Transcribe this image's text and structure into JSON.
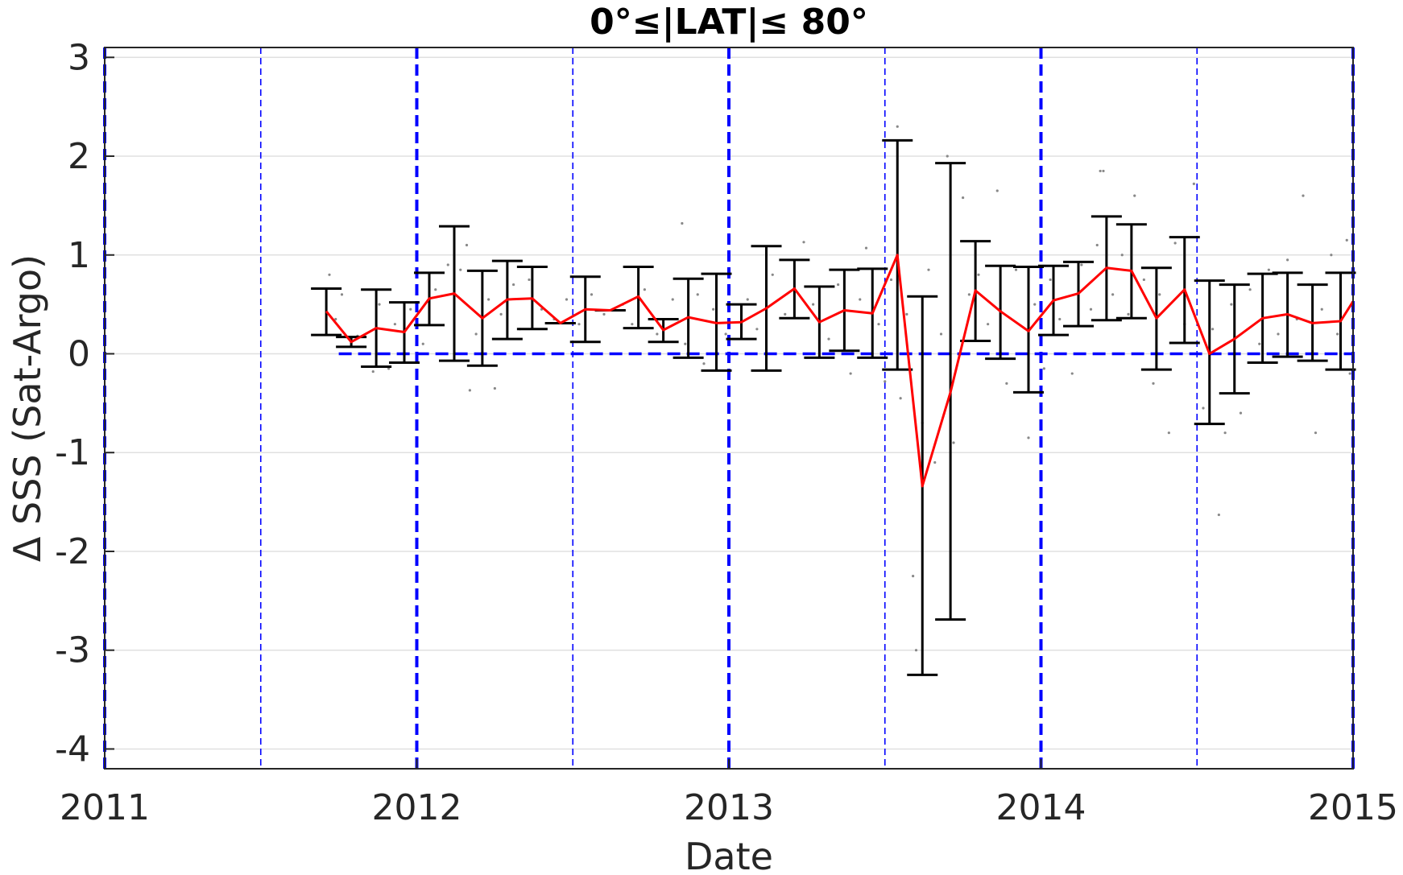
{
  "chart_data": {
    "type": "line",
    "title": "0°≤|LAT|≤ 80°",
    "xlabel": "Date",
    "ylabel": "Δ SSS (Sat-Argo)",
    "xlim": [
      2011.0,
      2015.0
    ],
    "ylim": [
      -4.2,
      3.1
    ],
    "x_ticks": [
      {
        "value": 2011,
        "label": "2011"
      },
      {
        "value": 2012,
        "label": "2012"
      },
      {
        "value": 2013,
        "label": "2013"
      },
      {
        "value": 2014,
        "label": "2014"
      },
      {
        "value": 2015,
        "label": "2015"
      }
    ],
    "y_ticks": [
      {
        "value": 3,
        "label": "3"
      },
      {
        "value": 2,
        "label": "2"
      },
      {
        "value": 1,
        "label": "1"
      },
      {
        "value": 0,
        "label": "0"
      },
      {
        "value": -1,
        "label": "-1"
      },
      {
        "value": -2,
        "label": "-2"
      },
      {
        "value": -3,
        "label": "-3"
      },
      {
        "value": -4,
        "label": "-4"
      }
    ],
    "grid": true,
    "zero_line": {
      "y": 0,
      "x_start": 2011.75,
      "x_end": 2015.0,
      "color": "#0000ff",
      "style": "dashed"
    },
    "vertical_markers": [
      {
        "x": 2011.0,
        "style": "thick"
      },
      {
        "x": 2011.5,
        "style": "thin"
      },
      {
        "x": 2012.0,
        "style": "thick"
      },
      {
        "x": 2012.5,
        "style": "thin"
      },
      {
        "x": 2013.0,
        "style": "thick"
      },
      {
        "x": 2013.5,
        "style": "thin"
      },
      {
        "x": 2014.0,
        "style": "thick"
      },
      {
        "x": 2014.5,
        "style": "thin"
      },
      {
        "x": 2015.0,
        "style": "thick"
      }
    ],
    "series": [
      {
        "color": "#ff0000",
        "x": [
          2011.71,
          2011.79,
          2011.87,
          2011.96,
          2012.04,
          2012.12,
          2012.21,
          2012.29,
          2012.37,
          2012.46,
          2012.54,
          2012.62,
          2012.71,
          2012.79,
          2012.87,
          2012.96,
          2013.04,
          2013.12,
          2013.21,
          2013.29,
          2013.37,
          2013.46,
          2013.54,
          2013.62,
          2013.71,
          2013.79,
          2013.87,
          2013.96,
          2014.04,
          2014.12,
          2014.21,
          2014.29,
          2014.37,
          2014.46,
          2014.54,
          2014.62,
          2014.71,
          2014.79,
          2014.87,
          2014.96,
          2015.0
        ],
        "y": [
          0.43,
          0.12,
          0.26,
          0.22,
          0.56,
          0.61,
          0.36,
          0.55,
          0.56,
          0.31,
          0.45,
          0.44,
          0.58,
          0.24,
          0.37,
          0.31,
          0.32,
          0.46,
          0.66,
          0.32,
          0.44,
          0.41,
          1.0,
          -1.34,
          -0.39,
          0.64,
          0.43,
          0.23,
          0.54,
          0.61,
          0.87,
          0.84,
          0.36,
          0.65,
          0.0,
          0.15,
          0.36,
          0.4,
          0.31,
          0.33,
          0.53
        ],
        "err_low": [
          0.19,
          0.07,
          -0.13,
          -0.09,
          0.29,
          -0.07,
          -0.12,
          0.15,
          0.25,
          0.31,
          0.12,
          0.44,
          0.26,
          0.12,
          -0.04,
          -0.17,
          0.15,
          -0.17,
          0.36,
          -0.04,
          0.03,
          -0.04,
          -0.16,
          -3.25,
          -2.69,
          0.13,
          -0.05,
          -0.39,
          0.19,
          0.28,
          0.34,
          0.36,
          -0.16,
          0.11,
          -0.71,
          -0.4,
          -0.09,
          -0.03,
          -0.07,
          -0.16
        ],
        "err_high": [
          0.66,
          0.17,
          0.65,
          0.52,
          0.82,
          1.29,
          0.84,
          0.94,
          0.88,
          0.31,
          0.78,
          0.44,
          0.88,
          0.35,
          0.76,
          0.81,
          0.5,
          1.09,
          0.95,
          0.68,
          0.85,
          0.86,
          2.16,
          0.58,
          1.93,
          1.14,
          0.89,
          0.88,
          0.89,
          0.93,
          1.39,
          1.31,
          0.87,
          1.18,
          0.74,
          0.7,
          0.81,
          0.82,
          0.7,
          0.82
        ]
      }
    ],
    "scatter_points": [
      [
        2011.72,
        0.8
      ],
      [
        2011.74,
        0.35
      ],
      [
        2011.76,
        0.6
      ],
      [
        2011.81,
        0.18
      ],
      [
        2011.86,
        -0.18
      ],
      [
        2011.88,
        0.5
      ],
      [
        2011.91,
        -0.15
      ],
      [
        2011.93,
        0.3
      ],
      [
        2011.98,
        0.45
      ],
      [
        2012.02,
        0.1
      ],
      [
        2012.06,
        0.65
      ],
      [
        2012.1,
        0.9
      ],
      [
        2012.14,
        0.85
      ],
      [
        2012.16,
        1.1
      ],
      [
        2012.17,
        -0.37
      ],
      [
        2012.19,
        0.2
      ],
      [
        2012.23,
        0.55
      ],
      [
        2012.25,
        -0.35
      ],
      [
        2012.27,
        0.4
      ],
      [
        2012.31,
        0.7
      ],
      [
        2012.33,
        0.25
      ],
      [
        2012.36,
        0.75
      ],
      [
        2012.4,
        0.45
      ],
      [
        2012.44,
        0.35
      ],
      [
        2012.48,
        0.55
      ],
      [
        2012.52,
        0.3
      ],
      [
        2012.56,
        0.6
      ],
      [
        2012.6,
        0.4
      ],
      [
        2012.66,
        0.5
      ],
      [
        2012.69,
        0.3
      ],
      [
        2012.73,
        0.65
      ],
      [
        2012.77,
        0.2
      ],
      [
        2012.82,
        0.55
      ],
      [
        2012.85,
        1.32
      ],
      [
        2012.86,
        0.1
      ],
      [
        2012.9,
        0.6
      ],
      [
        2012.92,
        -0.1
      ],
      [
        2012.95,
        0.45
      ],
      [
        2012.99,
        0.2
      ],
      [
        2013.06,
        0.55
      ],
      [
        2013.09,
        0.25
      ],
      [
        2013.14,
        0.8
      ],
      [
        2013.18,
        0.4
      ],
      [
        2013.24,
        1.13
      ],
      [
        2013.27,
        0.5
      ],
      [
        2013.32,
        0.15
      ],
      [
        2013.35,
        0.7
      ],
      [
        2013.39,
        -0.2
      ],
      [
        2013.42,
        0.55
      ],
      [
        2013.44,
        1.07
      ],
      [
        2013.48,
        0.3
      ],
      [
        2013.5,
        -0.28
      ],
      [
        2013.52,
        0.75
      ],
      [
        2013.54,
        2.3
      ],
      [
        2013.55,
        -0.45
      ],
      [
        2013.57,
        0.4
      ],
      [
        2013.59,
        -2.25
      ],
      [
        2013.6,
        -3.0
      ],
      [
        2013.62,
        -0.7
      ],
      [
        2013.64,
        0.85
      ],
      [
        2013.66,
        -1.1
      ],
      [
        2013.68,
        0.2
      ],
      [
        2013.7,
        2.0
      ],
      [
        2013.72,
        -0.9
      ],
      [
        2013.75,
        1.58
      ],
      [
        2013.77,
        0.6
      ],
      [
        2013.8,
        0.8
      ],
      [
        2013.83,
        0.3
      ],
      [
        2013.86,
        1.65
      ],
      [
        2013.89,
        -0.3
      ],
      [
        2013.92,
        0.85
      ],
      [
        2013.96,
        -0.85
      ],
      [
        2013.98,
        0.5
      ],
      [
        2014.01,
        -0.15
      ],
      [
        2014.03,
        0.75
      ],
      [
        2014.06,
        0.35
      ],
      [
        2014.1,
        -0.2
      ],
      [
        2014.13,
        0.9
      ],
      [
        2014.16,
        0.45
      ],
      [
        2014.18,
        1.1
      ],
      [
        2014.19,
        1.85
      ],
      [
        2014.2,
        1.85
      ],
      [
        2014.23,
        0.6
      ],
      [
        2014.26,
        1.0
      ],
      [
        2014.28,
        0.4
      ],
      [
        2014.3,
        1.6
      ],
      [
        2014.33,
        0.75
      ],
      [
        2014.36,
        -0.3
      ],
      [
        2014.38,
        0.6
      ],
      [
        2014.41,
        -0.8
      ],
      [
        2014.43,
        1.12
      ],
      [
        2014.46,
        0.3
      ],
      [
        2014.49,
        1.72
      ],
      [
        2014.52,
        -0.55
      ],
      [
        2014.55,
        0.25
      ],
      [
        2014.57,
        -1.63
      ],
      [
        2014.59,
        -0.8
      ],
      [
        2014.61,
        0.5
      ],
      [
        2014.64,
        -0.6
      ],
      [
        2014.67,
        0.65
      ],
      [
        2014.7,
        0.1
      ],
      [
        2014.73,
        0.85
      ],
      [
        2014.76,
        0.2
      ],
      [
        2014.79,
        0.95
      ],
      [
        2014.82,
        0.35
      ],
      [
        2014.84,
        1.6
      ],
      [
        2014.86,
        0.7
      ],
      [
        2014.88,
        -0.8
      ],
      [
        2014.9,
        0.45
      ],
      [
        2014.93,
        1.0
      ],
      [
        2014.95,
        0.2
      ],
      [
        2014.98,
        1.15
      ],
      [
        2014.99,
        -0.2
      ]
    ],
    "colors": {
      "mean_line": "#ff0000",
      "error_bars": "#000000",
      "markers": "#0000ff",
      "scatter": "#888888"
    }
  }
}
